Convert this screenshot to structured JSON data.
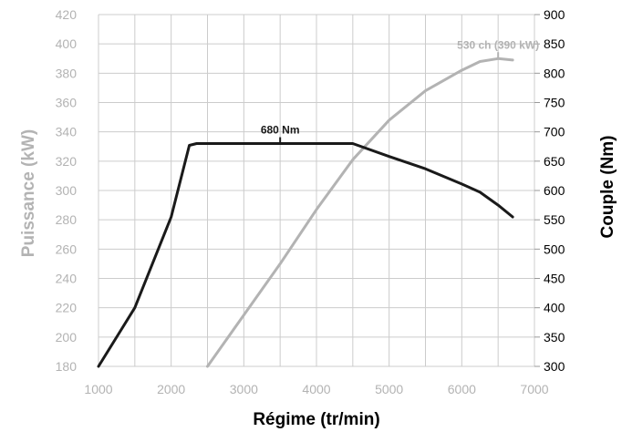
{
  "chart_data": {
    "type": "line",
    "xlabel": "Régime (tr/min)",
    "ylabel_left": "Puissance (kW)",
    "ylabel_right": "Couple (Nm)",
    "xlim": [
      1000,
      7000
    ],
    "ylim_left": [
      180,
      420
    ],
    "ylim_right": [
      300,
      900
    ],
    "x_ticks": [
      1000,
      2000,
      3000,
      4000,
      5000,
      6000,
      7000
    ],
    "y_left_ticks": [
      180,
      200,
      220,
      240,
      260,
      280,
      300,
      320,
      340,
      360,
      380,
      400,
      420
    ],
    "y_right_ticks": [
      300,
      350,
      400,
      450,
      500,
      550,
      600,
      650,
      700,
      750,
      800,
      850,
      900
    ],
    "grid": true,
    "colors": {
      "power": "#b3b3b3",
      "torque": "#1a1a1a",
      "grid": "#cccccc"
    },
    "series": [
      {
        "key": "power",
        "axis": "left",
        "unit": "kW",
        "x": [
          2500,
          3000,
          3500,
          4000,
          4500,
          5000,
          5500,
          6000,
          6250,
          6500,
          6700
        ],
        "y": [
          180,
          215,
          250,
          287,
          321,
          348,
          368,
          382,
          388,
          390,
          389
        ]
      },
      {
        "key": "torque",
        "axis": "right",
        "unit": "Nm",
        "x": [
          1000,
          1500,
          2000,
          2250,
          2350,
          3000,
          4000,
          4500,
          5000,
          5500,
          6000,
          6250,
          6500,
          6700
        ],
        "y": [
          300,
          400,
          555,
          677,
          680,
          680,
          680,
          680,
          658,
          637,
          611,
          597,
          575,
          555
        ]
      }
    ],
    "annotations": [
      {
        "text": "680 Nm",
        "series": "torque",
        "x": 3500,
        "value": 680
      },
      {
        "text": "530 ch (390 kW)",
        "series": "power",
        "x": 6500,
        "value": 390
      }
    ]
  }
}
